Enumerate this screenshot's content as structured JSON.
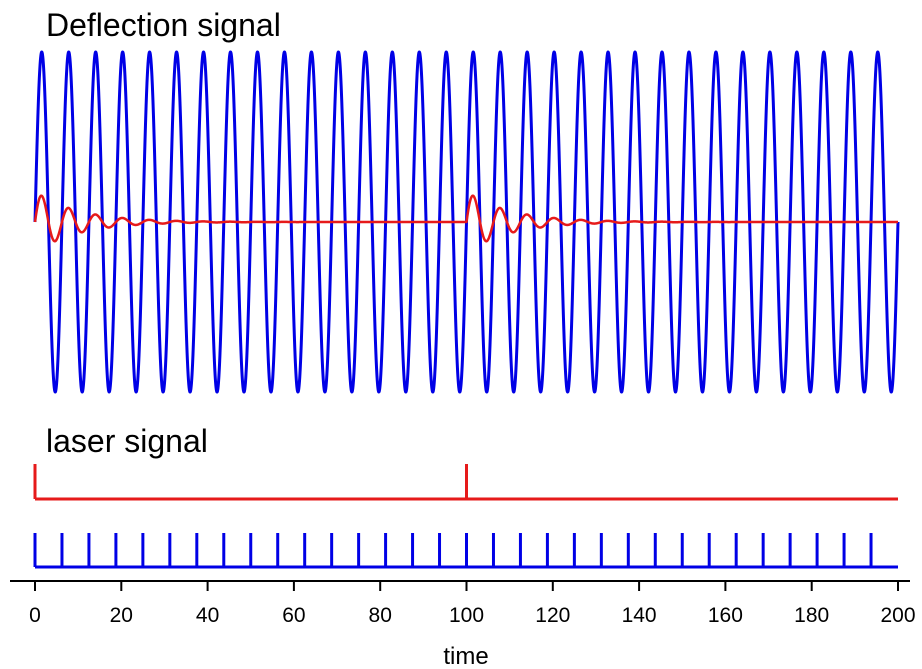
{
  "chart_data": {
    "type": "line",
    "xlabel": "time",
    "xlim": [
      0,
      200
    ],
    "grid": false,
    "x_ticks": [
      0,
      20,
      40,
      60,
      80,
      100,
      120,
      140,
      160,
      180,
      200
    ],
    "panels": [
      {
        "title": "Deflection signal",
        "series": [
          {
            "color": "#0000e6",
            "kind": "sinusoid",
            "amplitude": 1.0,
            "period": 6.25,
            "phase_at_zero": "zero, rising",
            "x_range": [
              0,
              200
            ]
          },
          {
            "color": "#e61a1a",
            "kind": "damped-oscillation",
            "initial_peak": 0.18,
            "period": 6.25,
            "decay_time": 10,
            "kicks_at_x": [
              0,
              100
            ],
            "baseline": 0
          }
        ]
      },
      {
        "title": "laser signal",
        "series": [
          {
            "color": "#e61a1a",
            "kind": "pulse-train",
            "pulse_x": [
              0,
              100
            ]
          },
          {
            "color": "#0000e6",
            "kind": "pulse-train",
            "pulse_period": 6.25,
            "pulse_x": [
              0,
              6.25,
              12.5,
              18.75,
              25,
              31.25,
              37.5,
              43.75,
              50,
              56.25,
              62.5,
              68.75,
              75,
              81.25,
              87.5,
              93.75,
              100,
              106.25,
              112.5,
              118.75,
              125,
              131.25,
              137.5,
              143.75,
              150,
              156.25,
              162.5,
              168.75,
              175,
              181.25,
              187.5,
              193.75
            ]
          }
        ]
      }
    ]
  }
}
